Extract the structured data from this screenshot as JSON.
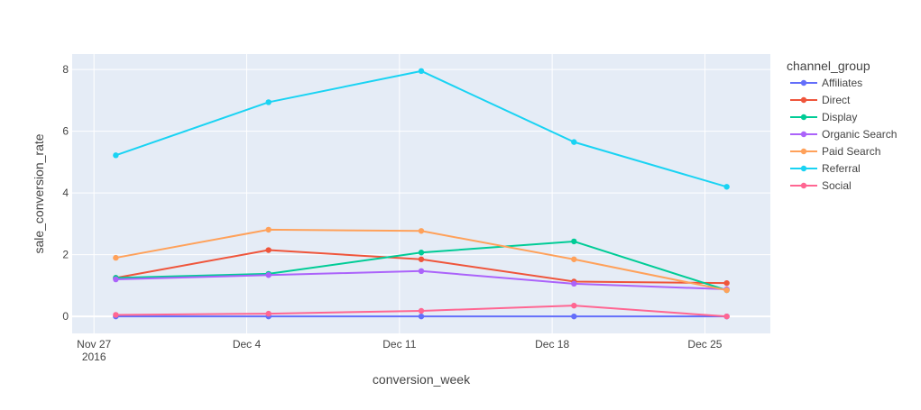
{
  "chart_data": {
    "type": "line",
    "xlabel": "conversion_week",
    "ylabel": "sale_conversion_rate",
    "x": [
      "2016-11-28",
      "2016-12-05",
      "2016-12-12",
      "2016-12-19",
      "2016-12-26"
    ],
    "x_ticks": [
      {
        "date": "2016-11-27",
        "label": "Nov 27",
        "sublabel": "2016"
      },
      {
        "date": "2016-12-04",
        "label": "Dec 4",
        "sublabel": ""
      },
      {
        "date": "2016-12-11",
        "label": "Dec 11",
        "sublabel": ""
      },
      {
        "date": "2016-12-18",
        "label": "Dec 18",
        "sublabel": ""
      },
      {
        "date": "2016-12-25",
        "label": "Dec 25",
        "sublabel": ""
      }
    ],
    "xlim": [
      "2016-11-26",
      "2016-12-28"
    ],
    "ylim": [
      -0.55,
      8.5
    ],
    "y_ticks": [
      0,
      2,
      4,
      6,
      8
    ],
    "grid": true,
    "legend_title": "channel_group",
    "legend_position": "right",
    "series": [
      {
        "name": "Affiliates",
        "color": "#636efa",
        "values": [
          0.0,
          0.0,
          0.0,
          0.0,
          0.0
        ]
      },
      {
        "name": "Direct",
        "color": "#EF553B",
        "values": [
          1.25,
          2.15,
          1.85,
          1.13,
          1.08
        ]
      },
      {
        "name": "Display",
        "color": "#00cc96",
        "values": [
          1.25,
          1.38,
          2.07,
          2.43,
          0.85
        ]
      },
      {
        "name": "Organic Search",
        "color": "#ab63fa",
        "values": [
          1.2,
          1.34,
          1.47,
          1.06,
          0.88
        ]
      },
      {
        "name": "Paid Search",
        "color": "#FFA15A",
        "values": [
          1.9,
          2.81,
          2.77,
          1.85,
          0.85
        ]
      },
      {
        "name": "Referral",
        "color": "#19d3f3",
        "values": [
          5.22,
          6.94,
          7.95,
          5.65,
          4.2
        ]
      },
      {
        "name": "Social",
        "color": "#FF6692",
        "values": [
          0.05,
          0.09,
          0.18,
          0.35,
          0.0
        ]
      }
    ]
  }
}
